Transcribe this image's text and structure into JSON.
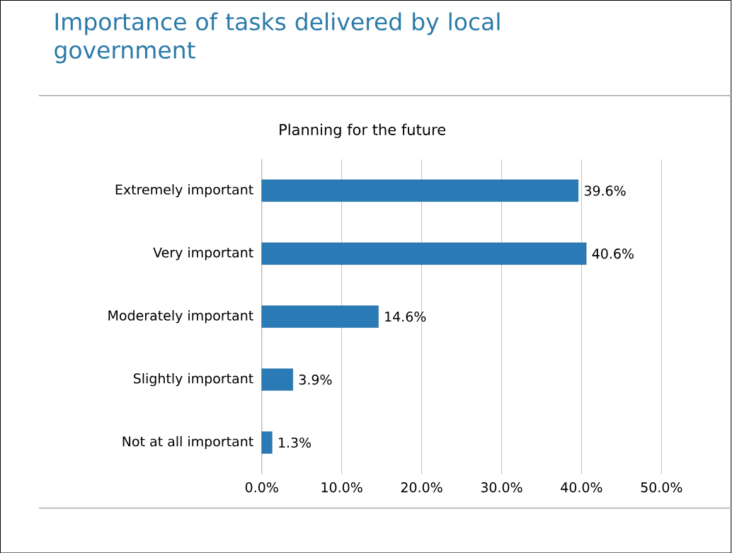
{
  "chart_data": {
    "type": "bar",
    "orientation": "horizontal",
    "title": "Importance of tasks delivered by local government",
    "subtitle": "Planning for the future",
    "categories": [
      "Extremely important",
      "Very important",
      "Moderately important",
      "Slightly important",
      "Not at all important"
    ],
    "values": [
      39.6,
      40.6,
      14.6,
      3.9,
      1.3
    ],
    "value_labels": [
      "39.6%",
      "40.6%",
      "14.6%",
      "3.9%",
      "1.3%"
    ],
    "color": "#2a7ab5",
    "xlim": [
      0,
      50
    ],
    "xticks": [
      {
        "value": 0,
        "label": "0.0%"
      },
      {
        "value": 10,
        "label": "10.0%"
      },
      {
        "value": 20,
        "label": "20.0%"
      },
      {
        "value": 30,
        "label": "30.0%"
      },
      {
        "value": 40,
        "label": "40.0%"
      },
      {
        "value": 50,
        "label": "50.0%"
      }
    ],
    "grid": "x"
  }
}
